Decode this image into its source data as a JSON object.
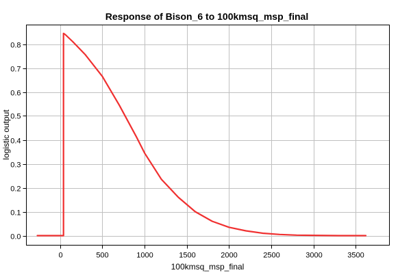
{
  "chart_data": {
    "type": "line",
    "title": "Response of Bison_6 to 100kmsq_msp_final",
    "xlabel": "100kmsq_msp_final",
    "ylabel": "logistic output",
    "xlim": [
      -400,
      3900
    ],
    "ylim": [
      -0.04,
      0.88
    ],
    "xticks": [
      0,
      500,
      1000,
      1500,
      2000,
      2500,
      3000,
      3500
    ],
    "yticks": [
      0.0,
      0.1,
      0.2,
      0.3,
      0.4,
      0.5,
      0.6,
      0.7,
      0.8
    ],
    "ytick_labels": [
      "0.0",
      "0.1",
      "0.2",
      "0.3",
      "0.4",
      "0.5",
      "0.6",
      "0.7",
      "0.8"
    ],
    "grid": true,
    "colors": {
      "series": "#f03030",
      "grid": "#c0c0c0",
      "frame": "#000000"
    },
    "series": [
      {
        "x": [
          -270,
          40,
          40,
          60,
          150,
          300,
          500,
          700,
          900,
          1000,
          1200,
          1400,
          1500,
          1600,
          1800,
          2000,
          2200,
          2400,
          2600,
          2800,
          3000,
          3300,
          3620
        ],
        "y": [
          0.0,
          0.0,
          0.845,
          0.84,
          0.81,
          0.755,
          0.665,
          0.545,
          0.415,
          0.345,
          0.235,
          0.16,
          0.13,
          0.1,
          0.06,
          0.035,
          0.02,
          0.01,
          0.005,
          0.002,
          0.001,
          0.0,
          0.0
        ]
      }
    ]
  }
}
